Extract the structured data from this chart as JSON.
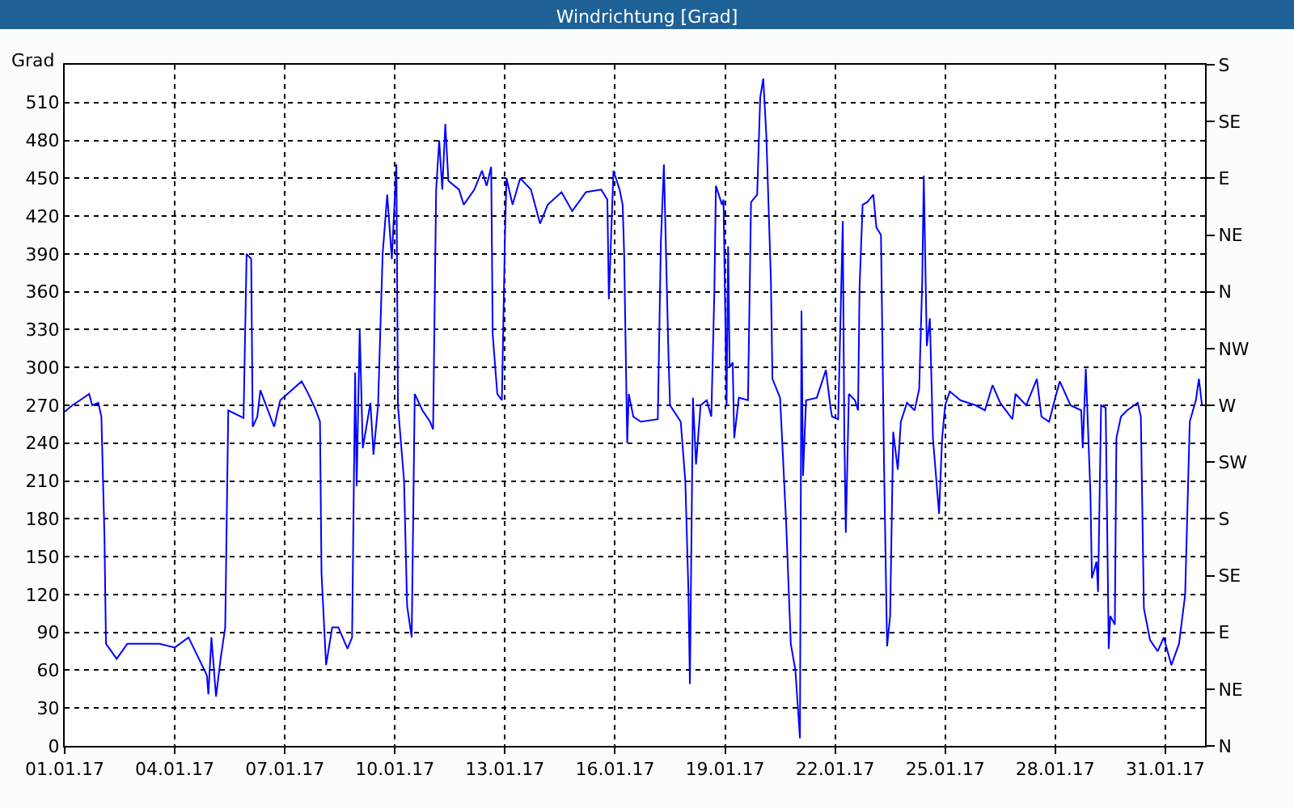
{
  "chart_data": {
    "type": "line",
    "title": "Windrichtung [Grad]",
    "ylabel": "Grad",
    "x": [
      "--01-01T00:00",
      "--01-01T05:00",
      "--01-01T10:00",
      "--01-01T16:00",
      "--01-01T18:00",
      "--01-01T22:00",
      "--01-02T00:00",
      "--01-02T02:00",
      "--01-02T03:00",
      "--01-02T10:00",
      "--01-02T17:00",
      "--01-03T14:00",
      "--01-04T00:00",
      "--01-04T09:00",
      "--01-04T21:00",
      "--01-04T22:00",
      "--01-05T00:00",
      "--01-05T03:00",
      "--01-05T06:00",
      "--01-05T09:00",
      "--01-05T11:00",
      "--01-05T21:00",
      "--01-05T23:00",
      "--01-06T02:00",
      "--01-06T03:00",
      "--01-06T06:00",
      "--01-06T08:00",
      "--01-06T17:00",
      "--01-06T21:00",
      "--01-07T11:00",
      "--01-07T15:00",
      "--01-07T20:00",
      "--01-07T23:00",
      "--01-08T00:00",
      "--01-08T03:00",
      "--01-08T07:00",
      "--01-08T11:00",
      "--01-08T17:00",
      "--01-08T20:00",
      "--01-08T22:00",
      "--01-08T23:00",
      "--01-09T01:00",
      "--01-09T03:00",
      "--01-09T08:00",
      "--01-09T10:00",
      "--01-09T13:00",
      "--01-09T16:00",
      "--01-09T19:00",
      "--01-09T22:00",
      "--01-10T01:00",
      "--01-10T02:00",
      "--01-10T06:00",
      "--01-10T08:00",
      "--01-10T11:00",
      "--01-10T13:00",
      "--01-10T18:00",
      "--01-10T23:00",
      "--01-11T01:00",
      "--01-11T03:00",
      "--01-11T05:00",
      "--01-11T07:00",
      "--01-11T09:00",
      "--01-11T11:00",
      "--01-11T18:00",
      "--01-11T21:00",
      "--01-12T04:00",
      "--01-12T09:00",
      "--01-12T12:00",
      "--01-12T15:00",
      "--01-12T16:00",
      "--01-12T19:00",
      "--01-12T22:00",
      "--01-13T00:00",
      "--01-13T01:00",
      "--01-13T05:00",
      "--01-13T10:00",
      "--01-13T17:00",
      "--01-13T23:00",
      "--01-14T04:00",
      "--01-14T13:00",
      "--01-14T20:00",
      "--01-15T05:00",
      "--01-15T15:00",
      "--01-15T19:00",
      "--01-15T20:00",
      "--01-15T23:00",
      "--01-16T03:00",
      "--01-16T05:00",
      "--01-16T06:00",
      "--01-16T08:00",
      "--01-16T09:00",
      "--01-16T12:00",
      "--01-16T17:00",
      "--01-17T04:00",
      "--01-17T06:00",
      "--01-17T08:00",
      "--01-17T11:00",
      "--01-17T12:00",
      "--01-17T19:00",
      "--01-17T22:00",
      "--01-18T00:00",
      "--01-18T01:00",
      "--01-18T03:00",
      "--01-18T05:00",
      "--01-18T08:00",
      "--01-18T12:00",
      "--01-18T15:00",
      "--01-18T17:00",
      "--01-18T18:00",
      "--01-18T22:00",
      "--01-18T23:00",
      "--01-19T01:00",
      "--01-19T02:00",
      "--01-19T03:00",
      "--01-19T05:00",
      "--01-19T06:00",
      "--01-19T09:00",
      "--01-19T15:00",
      "--01-19T17:00",
      "--01-19T21:00",
      "--01-19T23:00",
      "--01-20T01:00",
      "--01-20T03:00",
      "--01-20T06:00",
      "--01-20T07:00",
      "--01-20T12:00",
      "--01-20T16:00",
      "--01-20T19:00",
      "--01-20T22:00",
      "--01-21T01:00",
      "--01-21T02:00",
      "--01-21T03:00",
      "--01-21T05:00",
      "--01-21T12:00",
      "--01-21T18:00",
      "--01-21T21:00",
      "--01-21T22:00",
      "--01-22T02:00",
      "--01-22T05:00",
      "--01-22T06:00",
      "--01-22T07:00",
      "--01-22T09:00",
      "--01-22T13:00",
      "--01-22T15:00",
      "--01-22T16:00",
      "--01-22T18:00",
      "--01-22T21:00",
      "--01-23T01:00",
      "--01-23T03:00",
      "--01-23T06:00",
      "--01-23T08:00",
      "--01-23T10:00",
      "--01-23T12:00",
      "--01-23T14:00",
      "--01-23T17:00",
      "--01-23T19:00",
      "--01-23T23:00",
      "--01-24T04:00",
      "--01-24T07:00",
      "--01-24T09:00",
      "--01-24T10:00",
      "--01-24T12:00",
      "--01-24T14:00",
      "--01-24T16:00",
      "--01-24T20:00",
      "--01-24T22:00",
      "--01-25T00:00",
      "--01-25T03:00",
      "--01-25T10:00",
      "--01-25T20:00",
      "--01-26T02:00",
      "--01-26T07:00",
      "--01-26T12:00",
      "--01-26T20:00",
      "--01-26T22:00",
      "--01-27T05:00",
      "--01-27T12:00",
      "--01-27T15:00",
      "--01-27T20:00",
      "--01-28T00:00",
      "--01-28T03:00",
      "--01-28T10:00",
      "--01-28T17:00",
      "--01-28T18:00",
      "--01-28T20:00",
      "--01-28T23:00",
      "--01-29T00:00",
      "--01-29T03:00",
      "--01-29T04:00",
      "--01-29T06:00",
      "--01-29T09:00",
      "--01-29T11:00",
      "--01-29T12:00",
      "--01-29T15:00",
      "--01-29T16:00",
      "--01-29T19:00",
      "--01-29T23:00",
      "--01-30T06:00",
      "--01-30T08:00",
      "--01-30T10:00",
      "--01-30T14:00",
      "--01-30T19:00",
      "--01-30T23:00",
      "--01-31T04:00",
      "--01-31T09:00",
      "--01-31T13:00",
      "--01-31T16:00",
      "--01-31T20:00",
      "--01-31T22:00",
      "--02-01T00:00"
    ],
    "series": [
      {
        "color": "#0000ff",
        "values": [
          265,
          270,
          274,
          279,
          270,
          272,
          261,
          167,
          81,
          69,
          81,
          81,
          78,
          86,
          56,
          41,
          86,
          39,
          69,
          94,
          266,
          260,
          390,
          386,
          253,
          261,
          282,
          253,
          274,
          289,
          280,
          267,
          257,
          137,
          64,
          94,
          94,
          77,
          86,
          296,
          206,
          330,
          236,
          272,
          231,
          270,
          390,
          437,
          386,
          461,
          270,
          210,
          111,
          86,
          279,
          266,
          257,
          251,
          441,
          480,
          441,
          493,
          448,
          441,
          429,
          441,
          456,
          444,
          459,
          326,
          279,
          274,
          403,
          450,
          429,
          450,
          441,
          414,
          429,
          439,
          424,
          439,
          441,
          433,
          354,
          456,
          441,
          429,
          390,
          240,
          279,
          261,
          257,
          259,
          399,
          461,
          309,
          270,
          257,
          210,
          124,
          49,
          276,
          223,
          270,
          274,
          261,
          360,
          444,
          429,
          433,
          270,
          396,
          300,
          304,
          244,
          276,
          274,
          431,
          437,
          514,
          529,
          484,
          369,
          291,
          276,
          176,
          81,
          60,
          6,
          345,
          214,
          274,
          276,
          298,
          268,
          261,
          259,
          416,
          249,
          169,
          279,
          274,
          266,
          364,
          429,
          431,
          437,
          411,
          405,
          223,
          79,
          103,
          249,
          219,
          257,
          272,
          266,
          283,
          369,
          452,
          317,
          339,
          244,
          184,
          244,
          270,
          281,
          274,
          270,
          266,
          286,
          272,
          259,
          279,
          270,
          291,
          261,
          257,
          276,
          289,
          270,
          266,
          236,
          299,
          201,
          133,
          146,
          122,
          270,
          268,
          77,
          103,
          96,
          244,
          261,
          266,
          272,
          261,
          109,
          84,
          75,
          86,
          64,
          81,
          120,
          257,
          274,
          291,
          270
        ]
      }
    ],
    "xlim": [
      "--01-01",
      "--02-01T02:00"
    ],
    "xticks": [
      {
        "value": "--01-01",
        "label": "01.01.17"
      },
      {
        "value": "--01-04",
        "label": "04.01.17"
      },
      {
        "value": "--01-07",
        "label": "07.01.17"
      },
      {
        "value": "--01-10",
        "label": "10.01.17"
      },
      {
        "value": "--01-13",
        "label": "13.01.17"
      },
      {
        "value": "--01-16",
        "label": "16.01.17"
      },
      {
        "value": "--01-19",
        "label": "19.01.17"
      },
      {
        "value": "--01-22",
        "label": "22.01.17"
      },
      {
        "value": "--01-25",
        "label": "25.01.17"
      },
      {
        "value": "--01-28",
        "label": "28.01.17"
      },
      {
        "value": "--01-31",
        "label": "31.01.17"
      }
    ],
    "ylim": [
      0,
      540
    ],
    "yticks": [
      0,
      30,
      60,
      90,
      120,
      150,
      180,
      210,
      240,
      270,
      300,
      330,
      360,
      390,
      420,
      450,
      480,
      510
    ],
    "y2_categories": [
      "S",
      "SE",
      "E",
      "NE",
      "N",
      "NW",
      "W",
      "SW",
      "S",
      "SE",
      "E",
      "NE",
      "N"
    ],
    "grid": true,
    "marker": "none",
    "line_style": "solid"
  }
}
